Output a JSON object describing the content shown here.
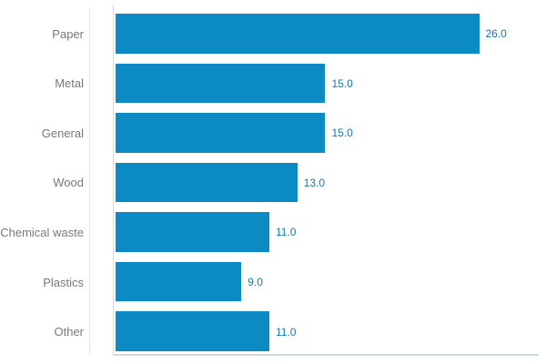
{
  "chart_data": {
    "type": "bar",
    "orientation": "horizontal",
    "title": "",
    "xlabel": "",
    "ylabel": "",
    "categories": [
      "Paper",
      "Metal",
      "General",
      "Wood",
      "Chemical waste",
      "Plastics",
      "Other"
    ],
    "values": [
      26.0,
      15.0,
      15.0,
      13.0,
      11.0,
      9.0,
      11.0
    ],
    "value_labels": [
      "26.0",
      "15.0",
      "15.0",
      "13.0",
      "11.0",
      "9.0",
      "11.0"
    ],
    "xlim": [
      0,
      26
    ],
    "grid": false,
    "legend": "none",
    "colors": {
      "bar": "#0b8ac3",
      "value_label": "#1577ae",
      "category_label": "#75787b",
      "category_axis_line": "#e4e4e4",
      "plot_left_line": "#d8d8d8",
      "x_axis_line": "#ccdce3",
      "background": "#ffffff"
    }
  }
}
